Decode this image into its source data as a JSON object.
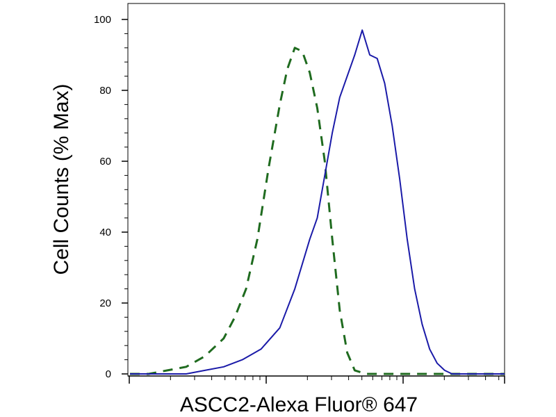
{
  "chart_data": {
    "type": "line",
    "xlabel": "ASCC2-Alexa Fluor® 647",
    "ylabel": "Cell Counts (% Max)",
    "ylim": [
      0,
      100
    ],
    "yticks": [
      "0",
      "20",
      "40",
      "60",
      "80",
      "100"
    ],
    "x_scale": "log",
    "xlim": [
      0,
      1
    ],
    "grid": false,
    "series": [
      {
        "style": "dashed",
        "color": "#1f6b1f",
        "points": [
          [
            0.0,
            0
          ],
          [
            0.05,
            0
          ],
          [
            0.1,
            1
          ],
          [
            0.15,
            2
          ],
          [
            0.2,
            5
          ],
          [
            0.25,
            10
          ],
          [
            0.28,
            16
          ],
          [
            0.31,
            24
          ],
          [
            0.34,
            38
          ],
          [
            0.37,
            58
          ],
          [
            0.4,
            76
          ],
          [
            0.42,
            86
          ],
          [
            0.44,
            92
          ],
          [
            0.46,
            91
          ],
          [
            0.48,
            85
          ],
          [
            0.5,
            75
          ],
          [
            0.52,
            60
          ],
          [
            0.54,
            38
          ],
          [
            0.56,
            18
          ],
          [
            0.58,
            6
          ],
          [
            0.6,
            1
          ],
          [
            0.63,
            0
          ],
          [
            1.0,
            0
          ]
        ]
      },
      {
        "style": "solid",
        "color": "#1a1aa8",
        "points": [
          [
            0.0,
            0
          ],
          [
            0.1,
            0
          ],
          [
            0.15,
            0
          ],
          [
            0.2,
            1
          ],
          [
            0.25,
            2
          ],
          [
            0.3,
            4
          ],
          [
            0.35,
            7
          ],
          [
            0.4,
            13
          ],
          [
            0.44,
            24
          ],
          [
            0.48,
            38
          ],
          [
            0.5,
            44
          ],
          [
            0.52,
            56
          ],
          [
            0.54,
            68
          ],
          [
            0.56,
            78
          ],
          [
            0.58,
            84
          ],
          [
            0.6,
            90
          ],
          [
            0.62,
            97
          ],
          [
            0.64,
            90
          ],
          [
            0.66,
            89
          ],
          [
            0.68,
            82
          ],
          [
            0.7,
            70
          ],
          [
            0.72,
            55
          ],
          [
            0.74,
            38
          ],
          [
            0.76,
            24
          ],
          [
            0.78,
            14
          ],
          [
            0.8,
            7
          ],
          [
            0.82,
            3
          ],
          [
            0.84,
            1
          ],
          [
            0.86,
            0
          ],
          [
            1.0,
            0
          ]
        ]
      }
    ]
  }
}
